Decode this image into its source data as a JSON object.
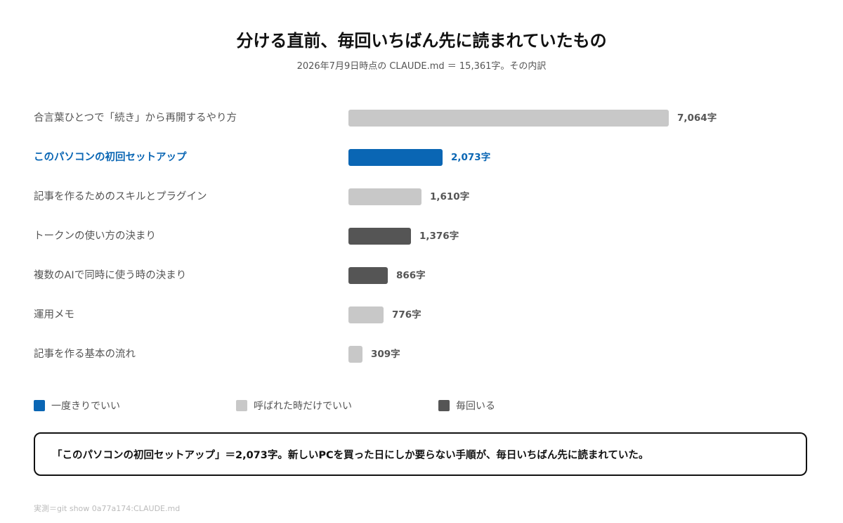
{
  "chart_data": {
    "type": "bar",
    "orientation": "horizontal",
    "title": "分ける直前、毎回いちばん先に読まれていたもの",
    "subtitle": "2026年7月9日時点の CLAUDE.md ＝ 15,361字。その内訳",
    "value_suffix": "字",
    "xlim": [
      0,
      7064
    ],
    "categories": [
      "合言葉ひとつで「続き」から再開するやり方",
      "このパソコンの初回セットアップ",
      "記事を作るためのスキルとプラグイン",
      "トークンの使い方の決まり",
      "複数のAIで同時に使う時の決まり",
      "運用メモ",
      "記事を作る基本の流れ"
    ],
    "values": [
      7064,
      2073,
      1610,
      1376,
      866,
      776,
      309
    ],
    "value_labels": [
      "7,064字",
      "2,073字",
      "1,610字",
      "1,376字",
      "866字",
      "776字",
      "309字"
    ],
    "groups": [
      "on_call",
      "once",
      "on_call",
      "every_time",
      "every_time",
      "on_call",
      "on_call"
    ],
    "highlight_index": 1,
    "legend": [
      {
        "key": "once",
        "label": "一度きりでいい",
        "color": "#0a66b4"
      },
      {
        "key": "on_call",
        "label": "呼ばれた時だけでいい",
        "color": "#c8c8c8"
      },
      {
        "key": "every_time",
        "label": "毎回いる",
        "color": "#555555"
      }
    ],
    "legend_position": "bottom-left",
    "grid": false
  },
  "callout": "「このパソコンの初回セットアップ」＝2,073字。新しいPCを買った日にしか要らない手順が、毎日いちばん先に読まれていた。",
  "source_note": "実測＝git show 0a77a174:CLAUDE.md"
}
